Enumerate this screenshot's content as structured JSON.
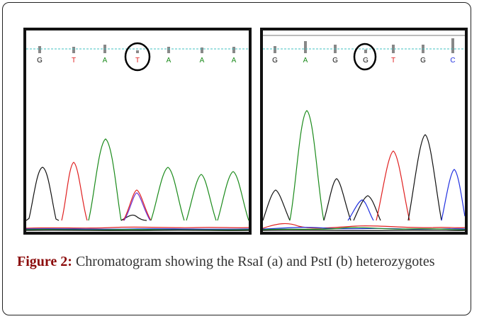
{
  "panels": [
    {
      "id": "a",
      "bases": [
        "G",
        "T",
        "A",
        "T",
        "A",
        "A",
        "A"
      ],
      "circled_index": 3
    },
    {
      "id": "b",
      "bases": [
        "G",
        "A",
        "G",
        "G",
        "T",
        "G",
        "C"
      ],
      "circled_index": 3
    }
  ],
  "base_colors": {
    "G": "#111111",
    "A": "#1a8a1a",
    "T": "#e02020",
    "C": "#2030e0"
  },
  "guide_line_color": "#40c0c0",
  "caption": {
    "label": "Figure 2:",
    "text": " Chromatogram showing the RsaI (a) and PstI (b) heterozygotes"
  }
}
